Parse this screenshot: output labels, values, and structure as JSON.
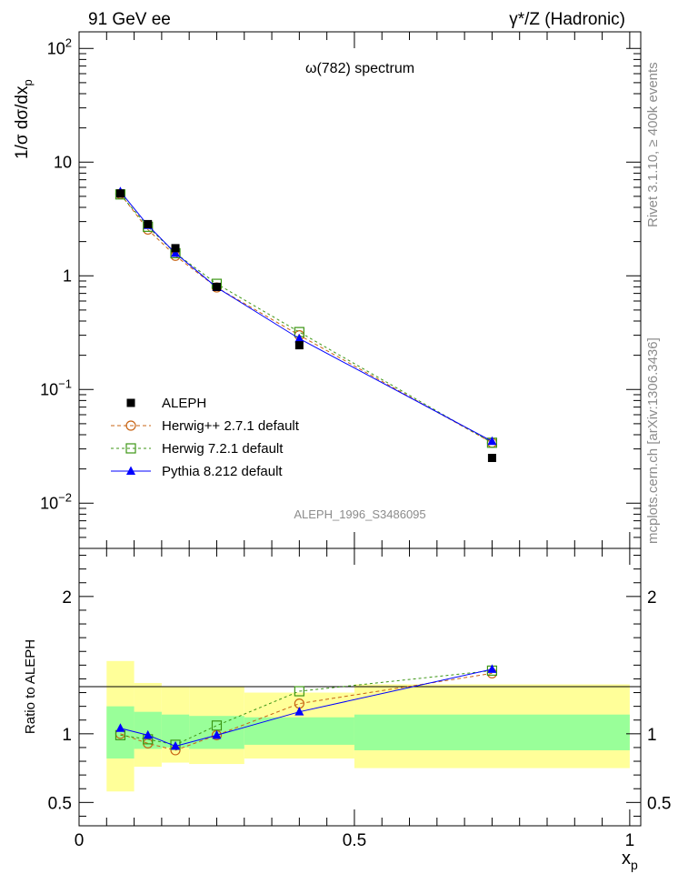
{
  "header": {
    "left": "91 GeV ee",
    "right": "γ*/Z (Hadronic)"
  },
  "side_text": {
    "rivet": "Rivet 3.1.10, ≥ 400k events",
    "mcplots": "mcplots.cern.ch [arXiv:1306.3436]"
  },
  "colors": {
    "data": "#000000",
    "herwigpp": "#c86414",
    "herwig7": "#3c9614",
    "pythia": "#0000ff",
    "band_inner": "#99ff99",
    "band_outer": "#ffff99",
    "watermark": "#8c8c8c"
  },
  "chart_data": [
    {
      "type": "line",
      "title": "ω(782) spectrum",
      "watermark": "ALEPH_1996_S3486095",
      "ylabel_main": "1/σ dσ/dx",
      "ylabel_sub": "p",
      "yscale": "log",
      "ylim": [
        0.004,
        140
      ],
      "xlim": [
        0,
        1.02
      ],
      "ytick_labels": [
        {
          "value": 100,
          "base": "10",
          "exp": "2"
        },
        {
          "value": 10,
          "base": "10",
          "exp": ""
        },
        {
          "value": 1,
          "base": "1",
          "exp": ""
        },
        {
          "value": 0.1,
          "base": "10",
          "exp": "−1"
        },
        {
          "value": 0.01,
          "base": "10",
          "exp": "−2"
        }
      ],
      "legend": {
        "placement": "bottom-left",
        "entries": [
          {
            "key": "data",
            "label": "ALEPH"
          },
          {
            "key": "herwigpp",
            "label": "Herwig++ 2.7.1 default"
          },
          {
            "key": "herwig7",
            "label": "Herwig 7.2.1 default"
          },
          {
            "key": "pythia",
            "label": "Pythia 8.212 default"
          }
        ]
      },
      "data": {
        "name": "ALEPH",
        "x": [
          0.075,
          0.125,
          0.175,
          0.25,
          0.4,
          0.75
        ],
        "xlow": [
          0.05,
          0.1,
          0.15,
          0.2,
          0.3,
          0.5
        ],
        "xhigh": [
          0.1,
          0.15,
          0.2,
          0.3,
          0.5,
          1.0
        ],
        "y": [
          5.3,
          2.85,
          1.75,
          0.8,
          0.245,
          0.025
        ]
      },
      "series": [
        {
          "key": "herwigpp",
          "name": "Herwig++ 2.7.1 default",
          "marker": "open-circle",
          "dash": "4,3",
          "x": [
            0.075,
            0.125,
            0.175,
            0.25,
            0.4,
            0.75
          ],
          "y": [
            5.25,
            2.55,
            1.5,
            0.79,
            0.3,
            0.034
          ]
        },
        {
          "key": "herwig7",
          "name": "Herwig 7.2.1 default",
          "marker": "open-square",
          "dash": "3,3",
          "x": [
            0.075,
            0.125,
            0.175,
            0.25,
            0.4,
            0.75
          ],
          "y": [
            5.2,
            2.7,
            1.58,
            0.85,
            0.32,
            0.034
          ]
        },
        {
          "key": "pythia",
          "name": "Pythia 8.212 default",
          "marker": "triangle",
          "dash": "",
          "x": [
            0.075,
            0.125,
            0.175,
            0.25,
            0.4,
            0.75
          ],
          "y": [
            5.5,
            2.78,
            1.58,
            0.79,
            0.28,
            0.035
          ]
        }
      ]
    },
    {
      "type": "line",
      "ylabel": "Ratio to ALEPH",
      "xlabel_main": "x",
      "xlabel_sub": "p",
      "ylim": [
        0.33,
        2.35
      ],
      "xlim": [
        0,
        1.02
      ],
      "ytick_labels": [
        "0.5",
        "1",
        "2"
      ],
      "ytick_values": [
        0.5,
        1,
        2
      ],
      "xtick_labels": [
        "0",
        "0.5",
        "1"
      ],
      "xtick_values": [
        0,
        0.5,
        1
      ],
      "bands": {
        "xlow": [
          0.05,
          0.1,
          0.15,
          0.2,
          0.3,
          0.5
        ],
        "xhigh": [
          0.1,
          0.15,
          0.2,
          0.3,
          0.5,
          1.0
        ],
        "inner_low": [
          0.82,
          0.89,
          0.9,
          0.89,
          0.92,
          0.88
        ],
        "inner_high": [
          1.2,
          1.16,
          1.14,
          1.13,
          1.12,
          1.14
        ],
        "outer_low": [
          0.58,
          0.76,
          0.79,
          0.78,
          0.82,
          0.75
        ],
        "outer_high": [
          1.53,
          1.37,
          1.34,
          1.34,
          1.3,
          1.36
        ]
      },
      "series": [
        {
          "key": "herwigpp",
          "x": [
            0.075,
            0.125,
            0.175,
            0.25,
            0.4,
            0.75
          ],
          "y": [
            1.0,
            0.93,
            0.88,
            0.99,
            1.22,
            1.44
          ]
        },
        {
          "key": "herwig7",
          "x": [
            0.075,
            0.125,
            0.175,
            0.25,
            0.4,
            0.75
          ],
          "y": [
            0.99,
            0.96,
            0.92,
            1.06,
            1.31,
            1.46
          ]
        },
        {
          "key": "pythia",
          "x": [
            0.075,
            0.125,
            0.175,
            0.25,
            0.4,
            0.75
          ],
          "y": [
            1.04,
            0.99,
            0.91,
            0.99,
            1.16,
            1.47
          ]
        }
      ]
    }
  ]
}
